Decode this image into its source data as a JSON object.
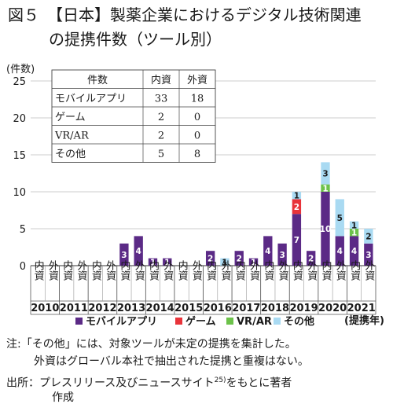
{
  "figure": {
    "title_line1": "図５　【日本】製薬企業におけるデジタル技術関連",
    "title_line2": "の提携件数（ツール別）"
  },
  "chart_data": {
    "type": "bar",
    "stacked": true,
    "ylabel": "(件数)",
    "xlabel": "(提携年)",
    "ylim": [
      0,
      25
    ],
    "yticks": [
      0,
      5,
      10,
      15,
      20,
      25
    ],
    "grid": true,
    "legend_position": "bottom",
    "sub_categories": [
      "内資",
      "外資"
    ],
    "years": [
      "2010",
      "2011",
      "2012",
      "2013",
      "2014",
      "2015",
      "2016",
      "2017",
      "2018",
      "2019",
      "2020",
      "2021"
    ],
    "series": [
      {
        "name": "モバイルアプリ",
        "color": "#5b2a86",
        "values": [
          [
            0,
            0
          ],
          [
            0,
            0
          ],
          [
            0,
            0
          ],
          [
            3,
            4
          ],
          [
            1,
            1
          ],
          [
            0,
            0
          ],
          [
            2,
            0
          ],
          [
            2,
            1
          ],
          [
            4,
            3
          ],
          [
            7,
            2
          ],
          [
            10,
            4
          ],
          [
            4,
            3
          ]
        ]
      },
      {
        "name": "ゲーム",
        "color": "#e8333a",
        "values": [
          [
            0,
            0
          ],
          [
            0,
            0
          ],
          [
            0,
            0
          ],
          [
            0,
            0
          ],
          [
            0,
            0
          ],
          [
            0,
            0
          ],
          [
            0,
            0
          ],
          [
            0,
            0
          ],
          [
            0,
            0
          ],
          [
            2,
            0
          ],
          [
            0,
            0
          ],
          [
            0,
            0
          ]
        ]
      },
      {
        "name": "VR/AR",
        "color": "#6cc24a",
        "values": [
          [
            0,
            0
          ],
          [
            0,
            0
          ],
          [
            0,
            0
          ],
          [
            0,
            0
          ],
          [
            0,
            0
          ],
          [
            0,
            0
          ],
          [
            0,
            0
          ],
          [
            0,
            0
          ],
          [
            0,
            0
          ],
          [
            0,
            0
          ],
          [
            1,
            0
          ],
          [
            1,
            0
          ]
        ]
      },
      {
        "name": "その他",
        "color": "#a9daf2",
        "values": [
          [
            0,
            0
          ],
          [
            0,
            0
          ],
          [
            0,
            0
          ],
          [
            0,
            0
          ],
          [
            0,
            0
          ],
          [
            0,
            0
          ],
          [
            0,
            1
          ],
          [
            0,
            0
          ],
          [
            0,
            0
          ],
          [
            1,
            0
          ],
          [
            3,
            5
          ],
          [
            1,
            2
          ]
        ]
      }
    ],
    "table": {
      "headers": [
        "件数",
        "内資",
        "外資"
      ],
      "rows": [
        [
          "モバイルアプリ",
          "33",
          "18"
        ],
        [
          "ゲーム",
          "2",
          "0"
        ],
        [
          "VR/AR",
          "2",
          "0"
        ],
        [
          "その他",
          "5",
          "8"
        ]
      ]
    }
  },
  "notes": {
    "line1": "注:「その他」には、対象ツールが未定の提携を集計した。",
    "line2": "外資はグローバル本社で抽出された提携と重複はない。",
    "line3_prefix": "出所：プレスリリース及びニュースサイト",
    "line3_sup": "25)",
    "line3_suffix": "をもとに著者",
    "line4": "作成"
  }
}
